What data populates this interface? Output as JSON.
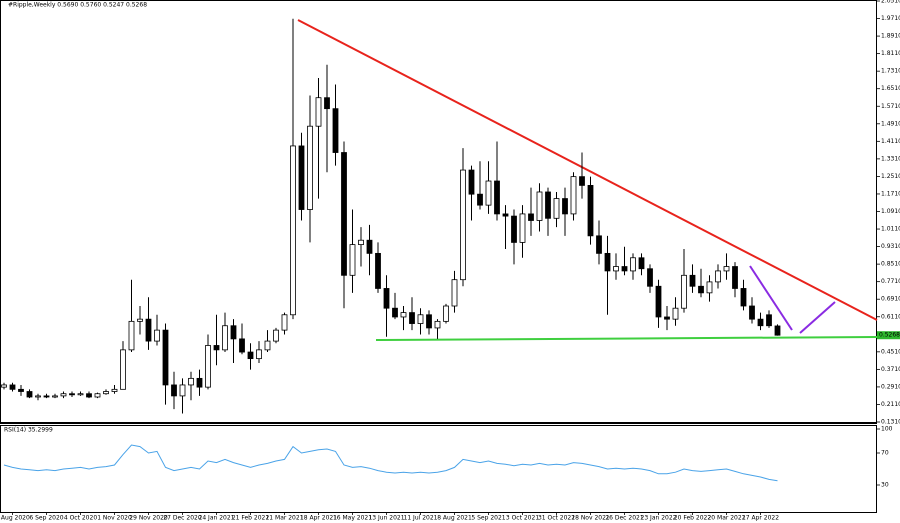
{
  "chart_data": [
    {
      "type": "candlestick",
      "title": "#Ripple,Weekly 0.5690 0.5760 0.5247 0.5268",
      "categories": [
        null,
        "9 Aug 2020",
        null,
        null,
        null,
        "6 Sep 2020",
        null,
        null,
        null,
        "4 Oct 2020",
        null,
        null,
        null,
        "1 Nov 2020",
        null,
        null,
        null,
        "29 Nov 2020",
        null,
        null,
        null,
        "27 Dec 2020",
        null,
        null,
        null,
        "24 Jan 2021",
        null,
        null,
        null,
        "21 Feb 2021",
        null,
        null,
        null,
        "21 Mar 2021",
        null,
        null,
        null,
        "18 Apr 2021",
        null,
        null,
        null,
        "16 May 2021",
        null,
        null,
        null,
        "13 Jun 2021",
        null,
        null,
        null,
        "11 Jul 2021",
        null,
        null,
        null,
        "8 Aug 2021",
        null,
        null,
        null,
        "5 Sep 2021",
        null,
        null,
        null,
        "3 Oct 2021",
        null,
        null,
        null,
        "31 Oct 2021",
        null,
        null,
        null,
        "28 Nov 2021",
        null,
        null,
        null,
        "26 Dec 2021",
        null,
        null,
        null,
        "23 Jan 2022",
        null,
        null,
        null,
        "20 Feb 2022",
        null,
        null,
        null,
        "20 Mar 2022",
        null,
        null,
        null,
        "17 Apr 2022",
        null,
        null
      ],
      "candles": [
        [
          0.29,
          0.31,
          0.28,
          0.3
        ],
        [
          0.3,
          0.31,
          0.27,
          0.28
        ],
        [
          0.28,
          0.3,
          0.25,
          0.27
        ],
        [
          0.27,
          0.28,
          0.24,
          0.245
        ],
        [
          0.245,
          0.26,
          0.23,
          0.25
        ],
        [
          0.25,
          0.26,
          0.24,
          0.245
        ],
        [
          0.245,
          0.26,
          0.24,
          0.25
        ],
        [
          0.25,
          0.27,
          0.24,
          0.26
        ],
        [
          0.26,
          0.27,
          0.245,
          0.255
        ],
        [
          0.255,
          0.27,
          0.25,
          0.26
        ],
        [
          0.26,
          0.27,
          0.24,
          0.245
        ],
        [
          0.245,
          0.265,
          0.24,
          0.26
        ],
        [
          0.26,
          0.28,
          0.255,
          0.27
        ],
        [
          0.27,
          0.3,
          0.26,
          0.28
        ],
        [
          0.28,
          0.5,
          0.28,
          0.46
        ],
        [
          0.46,
          0.78,
          0.45,
          0.59
        ],
        [
          0.59,
          0.66,
          0.53,
          0.6
        ],
        [
          0.6,
          0.7,
          0.46,
          0.5
        ],
        [
          0.5,
          0.62,
          0.48,
          0.55
        ],
        [
          0.55,
          0.58,
          0.21,
          0.3
        ],
        [
          0.3,
          0.36,
          0.19,
          0.25
        ],
        [
          0.25,
          0.33,
          0.17,
          0.3
        ],
        [
          0.3,
          0.36,
          0.23,
          0.33
        ],
        [
          0.33,
          0.37,
          0.25,
          0.29
        ],
        [
          0.29,
          0.53,
          0.28,
          0.48
        ],
        [
          0.48,
          0.62,
          0.39,
          0.46
        ],
        [
          0.46,
          0.63,
          0.45,
          0.57
        ],
        [
          0.57,
          0.6,
          0.4,
          0.51
        ],
        [
          0.51,
          0.58,
          0.44,
          0.45
        ],
        [
          0.45,
          0.49,
          0.37,
          0.42
        ],
        [
          0.42,
          0.5,
          0.4,
          0.46
        ],
        [
          0.46,
          0.55,
          0.45,
          0.5
        ],
        [
          0.5,
          0.56,
          0.49,
          0.55
        ],
        [
          0.55,
          0.63,
          0.53,
          0.62
        ],
        [
          0.62,
          1.97,
          0.6,
          1.39
        ],
        [
          1.39,
          1.45,
          1.05,
          1.1
        ],
        [
          1.1,
          1.62,
          0.95,
          1.48
        ],
        [
          1.48,
          1.7,
          1.15,
          1.61
        ],
        [
          1.61,
          1.76,
          1.27,
          1.56
        ],
        [
          1.56,
          1.67,
          1.3,
          1.36
        ],
        [
          1.36,
          1.41,
          0.65,
          0.8
        ],
        [
          0.8,
          1.1,
          0.72,
          0.94
        ],
        [
          0.94,
          1.02,
          0.84,
          0.96
        ],
        [
          0.96,
          1.03,
          0.8,
          0.9
        ],
        [
          0.9,
          0.95,
          0.72,
          0.74
        ],
        [
          0.74,
          0.8,
          0.52,
          0.65
        ],
        [
          0.65,
          0.72,
          0.6,
          0.61
        ],
        [
          0.61,
          0.66,
          0.55,
          0.63
        ],
        [
          0.63,
          0.7,
          0.55,
          0.58
        ],
        [
          0.58,
          0.65,
          0.53,
          0.62
        ],
        [
          0.62,
          0.64,
          0.53,
          0.56
        ],
        [
          0.56,
          0.6,
          0.51,
          0.59
        ],
        [
          0.59,
          0.67,
          0.58,
          0.66
        ],
        [
          0.66,
          0.82,
          0.63,
          0.78
        ],
        [
          0.78,
          1.38,
          0.75,
          1.28
        ],
        [
          1.28,
          1.3,
          1.05,
          1.17
        ],
        [
          1.17,
          1.32,
          1.1,
          1.12
        ],
        [
          1.12,
          1.32,
          1.08,
          1.23
        ],
        [
          1.23,
          1.41,
          1.05,
          1.08
        ],
        [
          1.08,
          1.12,
          0.92,
          1.07
        ],
        [
          1.07,
          1.1,
          0.85,
          0.95
        ],
        [
          0.95,
          1.12,
          0.88,
          1.08
        ],
        [
          1.08,
          1.2,
          0.98,
          1.05
        ],
        [
          1.05,
          1.22,
          1.0,
          1.18
        ],
        [
          1.18,
          1.2,
          0.98,
          1.06
        ],
        [
          1.06,
          1.18,
          1.02,
          1.15
        ],
        [
          1.15,
          1.2,
          0.98,
          1.08
        ],
        [
          1.08,
          1.27,
          1.05,
          1.25
        ],
        [
          1.25,
          1.36,
          1.15,
          1.21
        ],
        [
          1.21,
          1.25,
          0.94,
          0.98
        ],
        [
          0.98,
          1.05,
          0.85,
          0.9
        ],
        [
          0.9,
          0.98,
          0.62,
          0.82
        ],
        [
          0.82,
          0.9,
          0.78,
          0.84
        ],
        [
          0.84,
          0.93,
          0.8,
          0.82
        ],
        [
          0.82,
          0.9,
          0.78,
          0.88
        ],
        [
          0.88,
          0.9,
          0.8,
          0.83
        ],
        [
          0.83,
          0.85,
          0.72,
          0.75
        ],
        [
          0.75,
          0.78,
          0.56,
          0.61
        ],
        [
          0.61,
          0.66,
          0.55,
          0.6
        ],
        [
          0.6,
          0.7,
          0.57,
          0.65
        ],
        [
          0.65,
          0.92,
          0.63,
          0.8
        ],
        [
          0.8,
          0.85,
          0.72,
          0.75
        ],
        [
          0.75,
          0.83,
          0.7,
          0.72
        ],
        [
          0.72,
          0.8,
          0.68,
          0.77
        ],
        [
          0.77,
          0.85,
          0.74,
          0.82
        ],
        [
          0.82,
          0.9,
          0.78,
          0.84
        ],
        [
          0.84,
          0.86,
          0.7,
          0.74
        ],
        [
          0.74,
          0.78,
          0.64,
          0.66
        ],
        [
          0.66,
          0.7,
          0.58,
          0.6
        ],
        [
          0.6,
          0.63,
          0.55,
          0.57
        ],
        [
          0.62,
          0.64,
          0.56,
          0.57
        ],
        [
          0.569,
          0.576,
          0.5247,
          0.5268
        ]
      ],
      "ylim": [
        0.131,
        2.051
      ],
      "yticks": [
        {
          "value": 2.051,
          "label": "2.0510"
        },
        {
          "value": 1.971,
          "label": "1.9710"
        },
        {
          "value": 1.891,
          "label": "1.8910"
        },
        {
          "value": 1.811,
          "label": "1.8110"
        },
        {
          "value": 1.731,
          "label": "1.7310"
        },
        {
          "value": 1.651,
          "label": "1.6510"
        },
        {
          "value": 1.571,
          "label": "1.5710"
        },
        {
          "value": 1.491,
          "label": "1.4910"
        },
        {
          "value": 1.411,
          "label": "1.4110"
        },
        {
          "value": 1.331,
          "label": "1.3310"
        },
        {
          "value": 1.251,
          "label": "1.2510"
        },
        {
          "value": 1.171,
          "label": "1.1710"
        },
        {
          "value": 1.091,
          "label": "1.0910"
        },
        {
          "value": 1.011,
          "label": "1.0110"
        },
        {
          "value": 0.931,
          "label": "0.9310"
        },
        {
          "value": 0.851,
          "label": "0.8510"
        },
        {
          "value": 0.771,
          "label": "0.7710"
        },
        {
          "value": 0.691,
          "label": "0.6910"
        },
        {
          "value": 0.611,
          "label": "0.6110"
        },
        {
          "value": 0.451,
          "label": "0.4510"
        },
        {
          "value": 0.371,
          "label": "0.3710"
        },
        {
          "value": 0.291,
          "label": "0.2910"
        },
        {
          "value": 0.211,
          "label": "0.2110"
        },
        {
          "value": 0.131,
          "label": "0.1310"
        }
      ],
      "last_price": 0.5268,
      "last_price_color": "#2db82d"
    },
    {
      "type": "line",
      "title": "RSI(14) 35.2999",
      "color": "#4aa3e8",
      "values": [
        55,
        52,
        50,
        49,
        48,
        49,
        48,
        50,
        51,
        52,
        50,
        52,
        53,
        55,
        68,
        80,
        78,
        70,
        72,
        52,
        48,
        50,
        52,
        50,
        60,
        58,
        62,
        58,
        55,
        52,
        55,
        57,
        60,
        62,
        78,
        70,
        72,
        74,
        75,
        72,
        55,
        52,
        53,
        51,
        48,
        46,
        45,
        46,
        45,
        46,
        45,
        46,
        48,
        52,
        62,
        60,
        58,
        60,
        57,
        56,
        54,
        56,
        55,
        57,
        55,
        56,
        55,
        58,
        57,
        55,
        53,
        50,
        51,
        50,
        51,
        50,
        48,
        44,
        44,
        46,
        50,
        48,
        47,
        48,
        49,
        50,
        47,
        44,
        42,
        40,
        37,
        35.2999
      ],
      "ylim": [
        0,
        100
      ],
      "yticks": [
        100,
        70,
        30
      ]
    }
  ]
}
